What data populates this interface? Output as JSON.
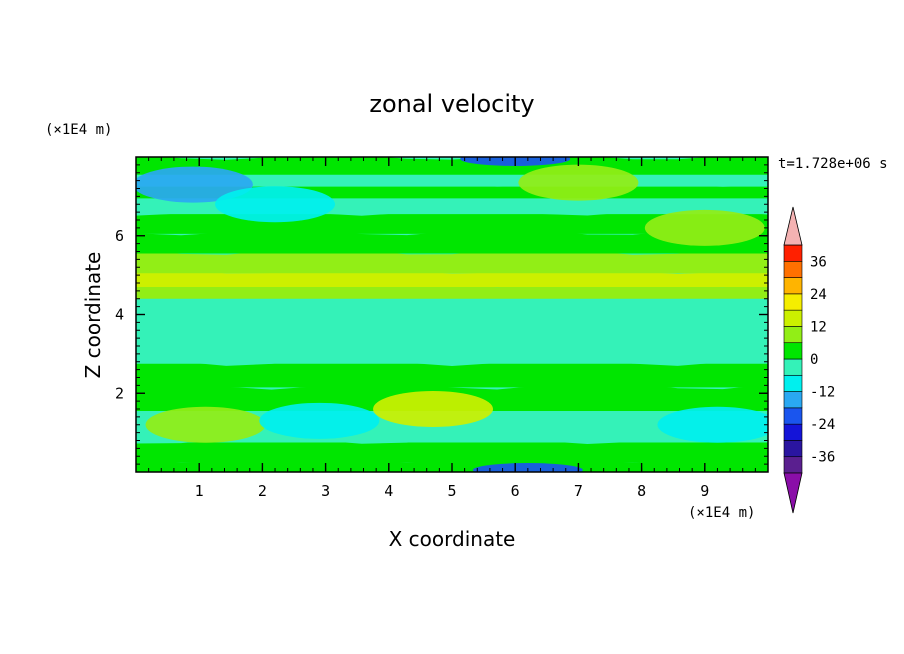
{
  "chart_data": {
    "type": "heatmap",
    "title": "zonal velocity",
    "xlabel": "X coordinate",
    "ylabel": "Z coordinate",
    "x_unit": "(×1E4 m)",
    "y_unit": "(×1E4 m)",
    "time_label": "t=1.728e+06 s",
    "xlim": [
      0,
      10
    ],
    "ylim": [
      0,
      8
    ],
    "x_ticks": [
      1,
      2,
      3,
      4,
      5,
      6,
      7,
      8,
      9
    ],
    "y_ticks": [
      2,
      4,
      6
    ],
    "x_tick_labels": [
      "1",
      "2",
      "3",
      "4",
      "5",
      "6",
      "7",
      "8",
      "9"
    ],
    "y_tick_labels": [
      "2",
      "4",
      "6"
    ],
    "colorbar": {
      "levels": [
        -42,
        -36,
        -30,
        -24,
        -18,
        -12,
        -6,
        0,
        6,
        12,
        18,
        24,
        30,
        36,
        42
      ],
      "labelled_levels": [
        -36,
        -24,
        -12,
        0,
        12,
        24,
        36
      ],
      "labels": [
        "-36",
        "-24",
        "-12",
        "0",
        "12",
        "24",
        "36"
      ],
      "colors": [
        "#5a1f8f",
        "#2a15a0",
        "#1414d8",
        "#1a55ee",
        "#2aa8f2",
        "#00f0ee",
        "#34f2b8",
        "#00e600",
        "#92ee16",
        "#ccf000",
        "#f5ee00",
        "#ffb400",
        "#ff7000",
        "#ff2000"
      ],
      "under_color": "#8a0ea8",
      "over_color": "#f4b2b2"
    },
    "field_notes": "Velocity in m/s; field is horizontally banded: a strong positive jet near z≈4.7 (6–12), negative (cyan/blue) pockets near the bottom (z≈0–1.5) and top (z≈7.5–8), weak positive elsewhere.",
    "bands": [
      {
        "z": 0.0,
        "u": 4
      },
      {
        "z": 0.3,
        "u": 2
      },
      {
        "z": 0.8,
        "u": -4
      },
      {
        "z": 1.2,
        "u": -2
      },
      {
        "z": 1.6,
        "u": 2
      },
      {
        "z": 2.2,
        "u": 0
      },
      {
        "z": 2.8,
        "u": -2
      },
      {
        "z": 3.3,
        "u": -4
      },
      {
        "z": 3.8,
        "u": -5
      },
      {
        "z": 4.2,
        "u": -6
      },
      {
        "z": 4.45,
        "u": 8
      },
      {
        "z": 4.75,
        "u": 12
      },
      {
        "z": 5.1,
        "u": 6
      },
      {
        "z": 5.6,
        "u": 3
      },
      {
        "z": 6.1,
        "u": 0
      },
      {
        "z": 6.6,
        "u": -1
      },
      {
        "z": 7.0,
        "u": 4
      },
      {
        "z": 7.3,
        "u": -4
      },
      {
        "z": 7.6,
        "u": 2
      },
      {
        "z": 8.0,
        "u": 6
      }
    ],
    "features": [
      {
        "x": 4.7,
        "z": 1.6,
        "u": 12
      },
      {
        "x": 1.1,
        "z": 1.2,
        "u": 10
      },
      {
        "x": 2.9,
        "z": 1.3,
        "u": -12
      },
      {
        "x": 9.2,
        "z": 1.2,
        "u": -12
      },
      {
        "x": 6.2,
        "z": 0.05,
        "u": -20
      },
      {
        "x": 6.0,
        "z": 7.95,
        "u": -24
      },
      {
        "x": 7.0,
        "z": 7.35,
        "u": 8
      },
      {
        "x": 0.9,
        "z": 7.3,
        "u": -16
      },
      {
        "x": 2.2,
        "z": 6.8,
        "u": -12
      },
      {
        "x": 9.0,
        "z": 6.2,
        "u": 8
      }
    ]
  }
}
